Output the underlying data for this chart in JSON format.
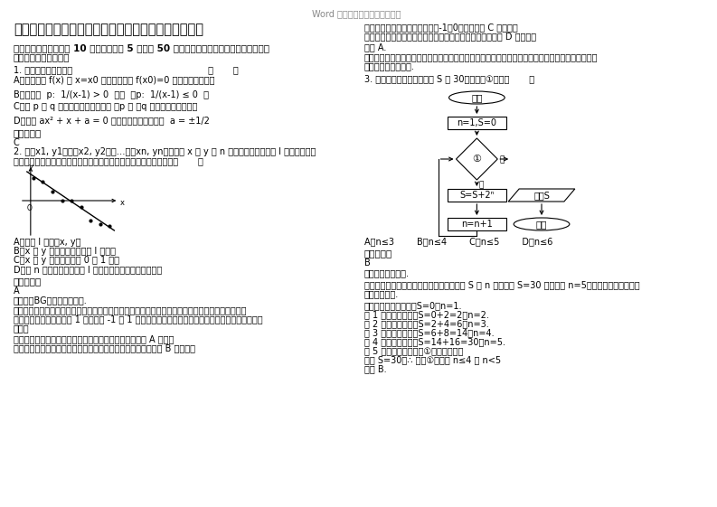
{
  "title": "四川省宜宾市兴文县中学校高二数学理模拟试卷含解析",
  "watermark": "Word 文档下载后（可任意编辑）",
  "section1_header": "一、选择题：本大题共 10 小题，每小题 5 分，共 50 分。在每小题给出的四个选项中，只有\n是一个符合题目要求的",
  "q1_text": "1. 下列说法中正确的是                                                （       ）",
  "q1_A": "A．命题函数 f(x) 在 x=x0 处有极值，则 f(x0)=0 的否命题是真命题",
  "q1_B": "B．若命题  p:  1/(x-1) > 0  ，则  非p:  1/(x-1) ≤ 0  ；",
  "q1_C": "C．若 p 是 q 的充分不必要条件，则 非p 是 非q 的必要不充分条件；",
  "q1_D": "D．方程 ax² + x + a = 0 有唯一解的充要条件是  a = ±1/2",
  "q1_answer_label": "参考答案：",
  "q1_answer": "C",
  "q2_text": "2. 设（x1, y1），（x2, y2），…，（xn, yn）是变量 x 和 y 的 n 次方个样本点，直线 l 是由这些样本\n点通过最小二乘法得到的线性回归直线（如图），以下结论正确的是（       ）",
  "q2_A": "A．直线 l 过点（x, y）",
  "q2_B": "B．x 和 y 的相关系数为直线 l 的斜率",
  "q2_C": "C．x 和 y 的相关系数在 0 到 1 之间",
  "q2_D": "D．当 n 为偶数时，分布在 l 两侧的样本点的个数一定相同",
  "q2_answer_label": "参考答案：",
  "q2_answer": "A",
  "q2_analysis_label": "【考点】BG：线性回归方程.",
  "q2_analysis1": "【分析】回归直线一定过这组数据的样本中心点，两个变量的相关系数不是直线的斜率，两个变量的\n相关系数的绝对值是小于 1 的，是在 -1 与 1 之间，所有的样本点集中在回归直线附近，没有特殊的\n限制。",
  "q2_answer_detail": "【解答】解：回归直线一定过这组数据的样本中心点，故 A 正确；\n两个变量的相关系数不是直线的斜率，而是需要用公式做出，故 B 不正确；",
  "right_col_1": "直线斜率为负，相关系数应在（-1，0）之间，故 C 不正确；",
  "right_col_1b": "所有的样本点集中在回归直线附近，不一定两侧一样多，故 D 不正确；",
  "right_col_2": "故选 A.",
  "right_col_3": "【点评】本题考查线性回归方程，考查样本中心点的性质，考查相关系数的做法，考查样本点的分布\n特点，是一个基础题.",
  "q3_text": "3. 若下面的程序框图输出的 S 是 30，则条件①可为（       ）",
  "q3_options": "A．n≤3        B．n≤4        C．n≤5        D．n≤6",
  "q3_answer_label": "参考答案：",
  "q3_answer": "B",
  "q3_analysis_label": "【考点】循环结构.",
  "q3_analysis1": "【分析】用列举法，通过循环过程直接得出 S 与 n 的值，当 S=30 时，此时 n=5，退出循环，从而可得\n判断框的条件.",
  "q3_answer_detail1": "【解答】解：循环前：S=0，n=1.",
  "q3_answer_detail2": "第 1 次判断后循环：S=0+2=2，n=2.",
  "q3_answer_detail3": "第 2 次判断后循环：S=2+4=6，n=3.",
  "q3_answer_detail4": "第 3 次判断后循环：S=6+8=14，n=4.",
  "q3_answer_detail5": "第 4 次判断后循环：S=14+16=30，n=5.",
  "q3_answer_detail6": "第 5 次判断不满足条件①并退出循环；",
  "q3_answer_detail7": "输出 S=30，∴ 条件①应该是 n≤4 或 n<5",
  "q3_answer_detail8": "故选 B.",
  "bg_color": "#ffffff",
  "text_color": "#000000",
  "title_color": "#000000",
  "watermark_color": "#888888"
}
